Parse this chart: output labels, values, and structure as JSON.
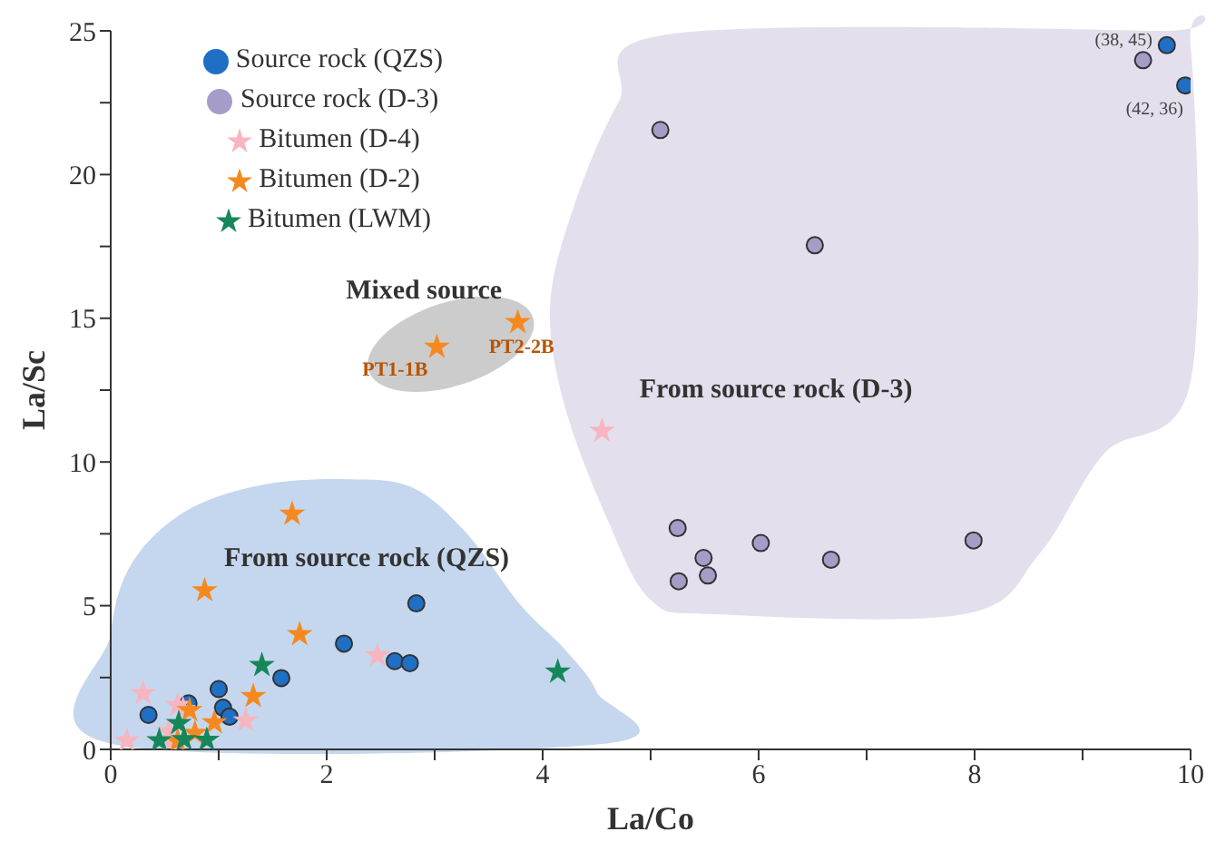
{
  "chart_data": {
    "type": "scatter",
    "xlabel": "La/Co",
    "ylabel": "La/Sc",
    "xlim": [
      0,
      10
    ],
    "xticks": [
      0,
      {
        "value": 1,
        "label": null
      },
      2,
      {
        "value": 3,
        "label": null
      },
      4,
      {
        "value": 5,
        "label": null
      },
      6,
      {
        "value": 7,
        "label": null
      },
      8,
      {
        "value": 9,
        "label": null
      },
      10
    ],
    "ylim": [
      0,
      25
    ],
    "yticks": [
      0,
      {
        "value": 2.5,
        "label": null
      },
      5,
      {
        "value": 7.5,
        "label": null
      },
      10,
      {
        "value": 12.5,
        "label": null
      },
      15,
      {
        "value": 17.5,
        "label": null
      },
      20,
      {
        "value": 22.5,
        "label": null
      },
      25
    ],
    "grid": false,
    "legend": "top left",
    "series": [
      {
        "name": "Source rock (QZS)",
        "color": "#1f6fc5",
        "marker": "circle",
        "x": [
          0.35,
          0.72,
          1.0,
          1.04,
          1.1,
          1.58,
          2.16,
          2.63,
          2.77,
          2.83,
          9.78,
          9.95
        ],
        "values": [
          1.2,
          1.6,
          2.1,
          1.45,
          1.14,
          2.48,
          3.68,
          3.07,
          3.0,
          5.08,
          24.5,
          23.1
        ]
      },
      {
        "name": "Source rock (D-3)",
        "color": "#a59cc8",
        "marker": "circle",
        "x": [
          5.09,
          6.52,
          9.56,
          5.25,
          6.02,
          5.49,
          5.53,
          5.26,
          6.67,
          7.99
        ],
        "values": [
          21.55,
          17.54,
          23.98,
          7.7,
          7.18,
          6.66,
          6.05,
          5.85,
          6.6,
          7.27
        ]
      },
      {
        "name": "Bitumen (D-4)",
        "color": "#f7b5bf",
        "marker": "star",
        "x": [
          0.3,
          0.15,
          0.54,
          0.62,
          0.67,
          0.55,
          1.25,
          2.47,
          4.55
        ],
        "values": [
          1.95,
          0.3,
          0.63,
          1.54,
          1.4,
          0.29,
          1.0,
          3.27,
          11.08
        ]
      },
      {
        "name": "Bitumen (D-2)",
        "color": "#f5891f",
        "marker": "star",
        "x": [
          1.68,
          0.87,
          1.75,
          1.32,
          0.96,
          0.78,
          0.73,
          0.62,
          3.02,
          3.77
        ],
        "values": [
          8.19,
          5.53,
          4.0,
          1.85,
          0.93,
          0.57,
          1.36,
          0.29,
          14.0,
          14.86
        ]
      },
      {
        "name": "Bitumen (LWM)",
        "color": "#15875a",
        "marker": "star",
        "x": [
          1.4,
          0.63,
          0.68,
          0.89,
          0.45,
          4.14
        ],
        "values": [
          2.93,
          0.91,
          0.35,
          0.33,
          0.31,
          2.7
        ]
      }
    ],
    "annotations": [
      "From source rock (QZS)",
      "Mixed source",
      "From source rock (D-3)",
      {
        "text": "PT1-1B",
        "x": 3.02,
        "y": 14.0
      },
      {
        "text": "PT2-2B",
        "x": 3.77,
        "y": 14.86
      },
      {
        "text": "(38, 45)",
        "x": 9.78,
        "y": 24.5
      },
      {
        "text": "(42, 36)",
        "x": 9.95,
        "y": 23.1
      }
    ]
  }
}
